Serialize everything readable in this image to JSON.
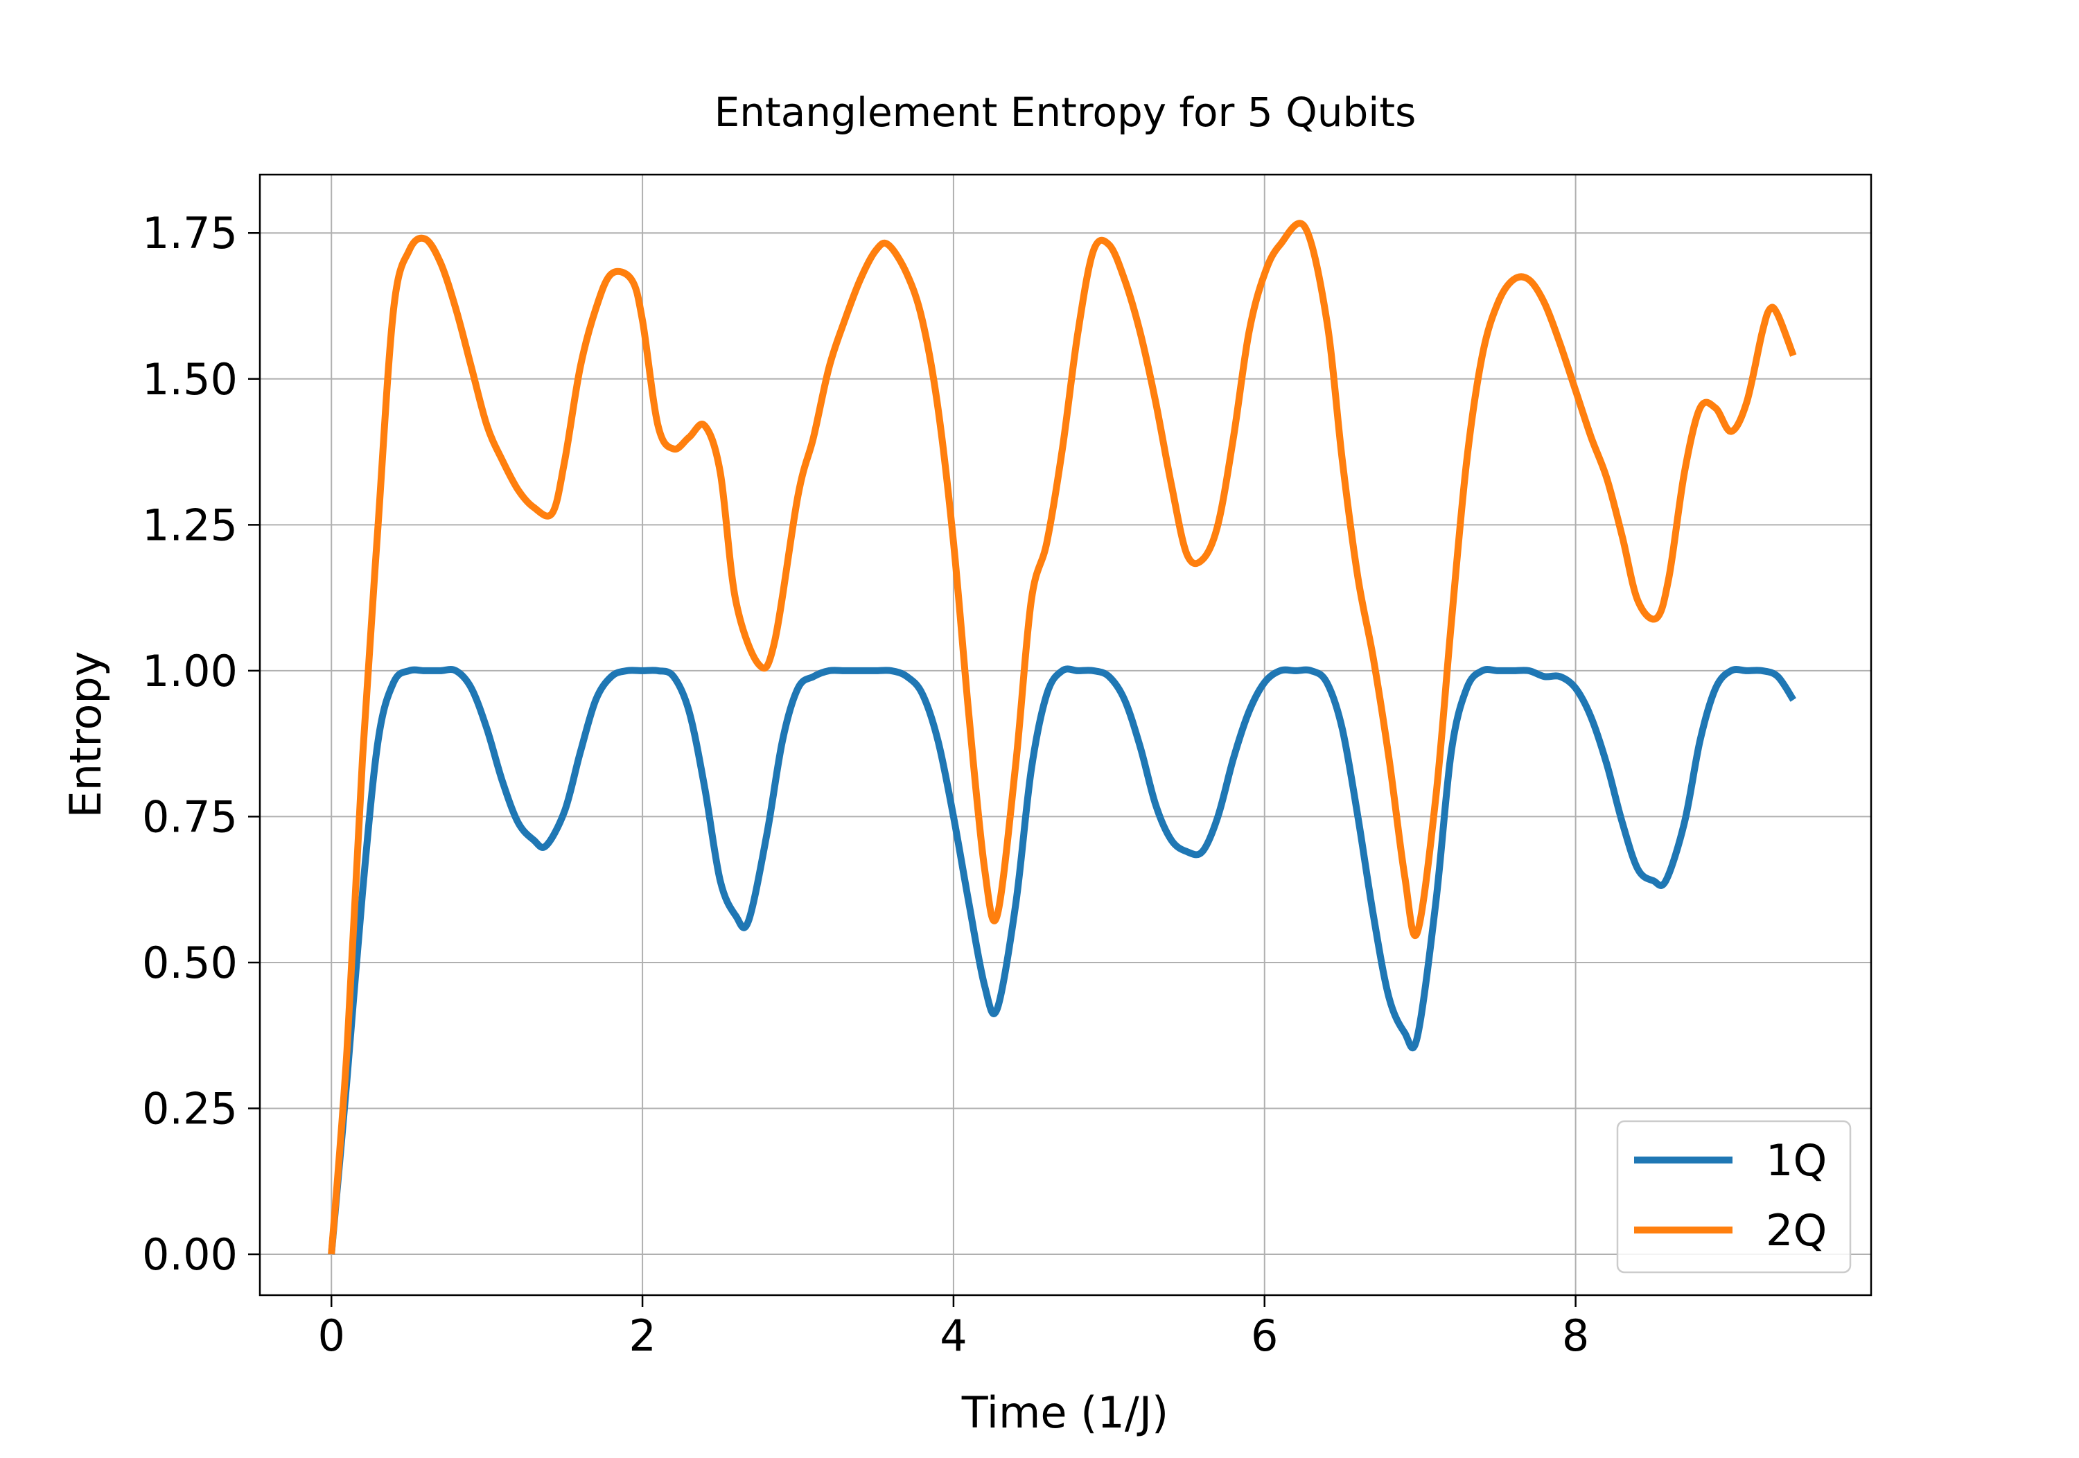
{
  "chart_data": {
    "type": "line",
    "title": "Entanglement Entropy for 5 Qubits",
    "xlabel": "Time (1/J)",
    "ylabel": "Entropy",
    "xlim": [
      -0.46,
      9.9
    ],
    "ylim": [
      -0.07,
      1.85
    ],
    "xticks": [
      0,
      2,
      4,
      6,
      8
    ],
    "xtick_labels": [
      "0",
      "2",
      "4",
      "6",
      "8"
    ],
    "yticks": [
      0.0,
      0.25,
      0.5,
      0.75,
      1.0,
      1.25,
      1.5,
      1.75
    ],
    "ytick_labels": [
      "0.00",
      "0.25",
      "0.50",
      "0.75",
      "1.00",
      "1.25",
      "1.50",
      "1.75"
    ],
    "grid": true,
    "legend_position": "lower-right",
    "series": [
      {
        "name": "1Q",
        "color": "#1f77b4",
        "x": [
          0,
          0.1,
          0.2,
          0.3,
          0.4,
          0.5,
          0.6,
          0.7,
          0.8,
          0.9,
          1.0,
          1.1,
          1.2,
          1.3,
          1.38,
          1.5,
          1.6,
          1.7,
          1.8,
          1.9,
          2.0,
          2.1,
          2.2,
          2.3,
          2.4,
          2.5,
          2.6,
          2.68,
          2.8,
          2.9,
          3.0,
          3.1,
          3.2,
          3.3,
          3.4,
          3.5,
          3.6,
          3.7,
          3.8,
          3.9,
          4.0,
          4.1,
          4.2,
          4.28,
          4.4,
          4.5,
          4.6,
          4.7,
          4.8,
          4.9,
          5.0,
          5.1,
          5.2,
          5.3,
          5.4,
          5.5,
          5.6,
          5.7,
          5.8,
          5.9,
          6.0,
          6.1,
          6.2,
          6.3,
          6.4,
          6.5,
          6.6,
          6.7,
          6.8,
          6.9,
          6.98,
          7.1,
          7.2,
          7.3,
          7.4,
          7.5,
          7.6,
          7.7,
          7.8,
          7.9,
          8.0,
          8.1,
          8.2,
          8.3,
          8.4,
          8.5,
          8.58,
          8.7,
          8.8,
          8.9,
          9.0,
          9.1,
          9.2,
          9.3,
          9.4
        ],
        "y": [
          0.0,
          0.3,
          0.62,
          0.88,
          0.98,
          1.0,
          1.0,
          1.0,
          1.0,
          0.97,
          0.9,
          0.81,
          0.74,
          0.71,
          0.7,
          0.76,
          0.86,
          0.95,
          0.99,
          1.0,
          1.0,
          1.0,
          0.99,
          0.93,
          0.8,
          0.64,
          0.58,
          0.57,
          0.72,
          0.88,
          0.97,
          0.99,
          1.0,
          1.0,
          1.0,
          1.0,
          1.0,
          0.99,
          0.96,
          0.88,
          0.75,
          0.6,
          0.46,
          0.42,
          0.6,
          0.83,
          0.96,
          1.0,
          1.0,
          1.0,
          0.99,
          0.95,
          0.87,
          0.77,
          0.71,
          0.69,
          0.69,
          0.75,
          0.85,
          0.93,
          0.98,
          1.0,
          1.0,
          1.0,
          0.98,
          0.9,
          0.75,
          0.58,
          0.44,
          0.38,
          0.37,
          0.6,
          0.86,
          0.97,
          1.0,
          1.0,
          1.0,
          1.0,
          0.99,
          0.99,
          0.97,
          0.92,
          0.84,
          0.74,
          0.66,
          0.64,
          0.64,
          0.74,
          0.88,
          0.97,
          1.0,
          1.0,
          1.0,
          0.99,
          0.95
        ]
      },
      {
        "name": "2Q",
        "color": "#ff7f0e",
        "x": [
          0,
          0.1,
          0.2,
          0.3,
          0.4,
          0.5,
          0.6,
          0.7,
          0.8,
          0.9,
          1.0,
          1.1,
          1.2,
          1.3,
          1.42,
          1.5,
          1.6,
          1.7,
          1.8,
          1.93,
          2.0,
          2.1,
          2.2,
          2.3,
          2.4,
          2.5,
          2.6,
          2.75,
          2.85,
          3.0,
          3.1,
          3.2,
          3.3,
          3.4,
          3.5,
          3.58,
          3.7,
          3.8,
          3.9,
          4.0,
          4.1,
          4.2,
          4.28,
          4.4,
          4.5,
          4.6,
          4.7,
          4.8,
          4.9,
          5.0,
          5.1,
          5.2,
          5.3,
          5.4,
          5.5,
          5.6,
          5.7,
          5.8,
          5.9,
          6.0,
          6.1,
          6.26,
          6.4,
          6.5,
          6.6,
          6.7,
          6.8,
          6.9,
          6.98,
          7.1,
          7.2,
          7.3,
          7.4,
          7.5,
          7.6,
          7.7,
          7.8,
          7.9,
          8.0,
          8.1,
          8.2,
          8.3,
          8.4,
          8.52,
          8.6,
          8.7,
          8.8,
          8.9,
          9.0,
          9.1,
          9.2,
          9.25,
          9.3,
          9.4
        ],
        "y": [
          0.0,
          0.35,
          0.85,
          1.25,
          1.62,
          1.72,
          1.74,
          1.7,
          1.62,
          1.52,
          1.42,
          1.36,
          1.31,
          1.28,
          1.27,
          1.36,
          1.52,
          1.62,
          1.68,
          1.67,
          1.6,
          1.42,
          1.38,
          1.4,
          1.42,
          1.34,
          1.12,
          1.01,
          1.05,
          1.3,
          1.4,
          1.52,
          1.6,
          1.67,
          1.72,
          1.73,
          1.68,
          1.6,
          1.45,
          1.22,
          0.92,
          0.66,
          0.58,
          0.84,
          1.12,
          1.22,
          1.38,
          1.58,
          1.72,
          1.73,
          1.67,
          1.58,
          1.46,
          1.32,
          1.2,
          1.19,
          1.25,
          1.4,
          1.58,
          1.68,
          1.73,
          1.76,
          1.6,
          1.36,
          1.16,
          1.02,
          0.85,
          0.65,
          0.55,
          0.78,
          1.08,
          1.36,
          1.54,
          1.63,
          1.67,
          1.67,
          1.63,
          1.56,
          1.48,
          1.4,
          1.33,
          1.23,
          1.12,
          1.09,
          1.16,
          1.34,
          1.45,
          1.45,
          1.41,
          1.46,
          1.58,
          1.62,
          1.61,
          1.54
        ]
      }
    ]
  }
}
